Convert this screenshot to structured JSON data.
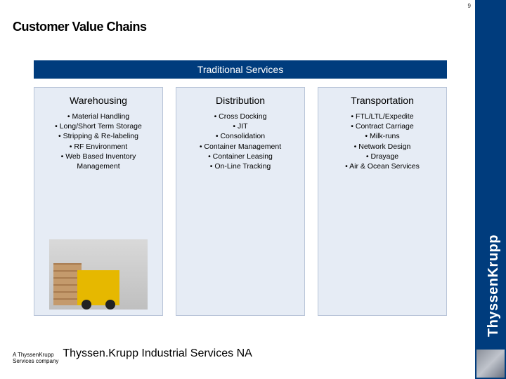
{
  "page_number": "9",
  "title": "Customer Value Chains",
  "brand_vertical": "ThyssenKrupp",
  "header_bar": "Traditional Services",
  "columns": [
    {
      "title": "Warehousing",
      "items": [
        "Material Handling",
        "Long/Short Term Storage",
        "Stripping & Re-labeling",
        "RF Environment",
        "Web Based Inventory Management"
      ],
      "has_image": true
    },
    {
      "title": "Distribution",
      "items": [
        "Cross Docking",
        "JIT",
        "Consolidation",
        "Container Management",
        "Container Leasing",
        "On-Line Tracking"
      ],
      "has_image": false
    },
    {
      "title": "Transportation",
      "items": [
        "FTL/LTL/Expedite",
        "Contract Carriage",
        "Milk-runs",
        "Network Design",
        "Drayage",
        "Air & Ocean Services"
      ],
      "has_image": false
    }
  ],
  "footer_small_line1": "A ThyssenKrupp",
  "footer_small_line2": "Services company",
  "footer_big": "Thyssen.Krupp Industrial Services NA",
  "colors": {
    "brand_blue": "#003c7d",
    "panel_bg": "#e6ecf5",
    "panel_border": "#b8c4d8"
  }
}
